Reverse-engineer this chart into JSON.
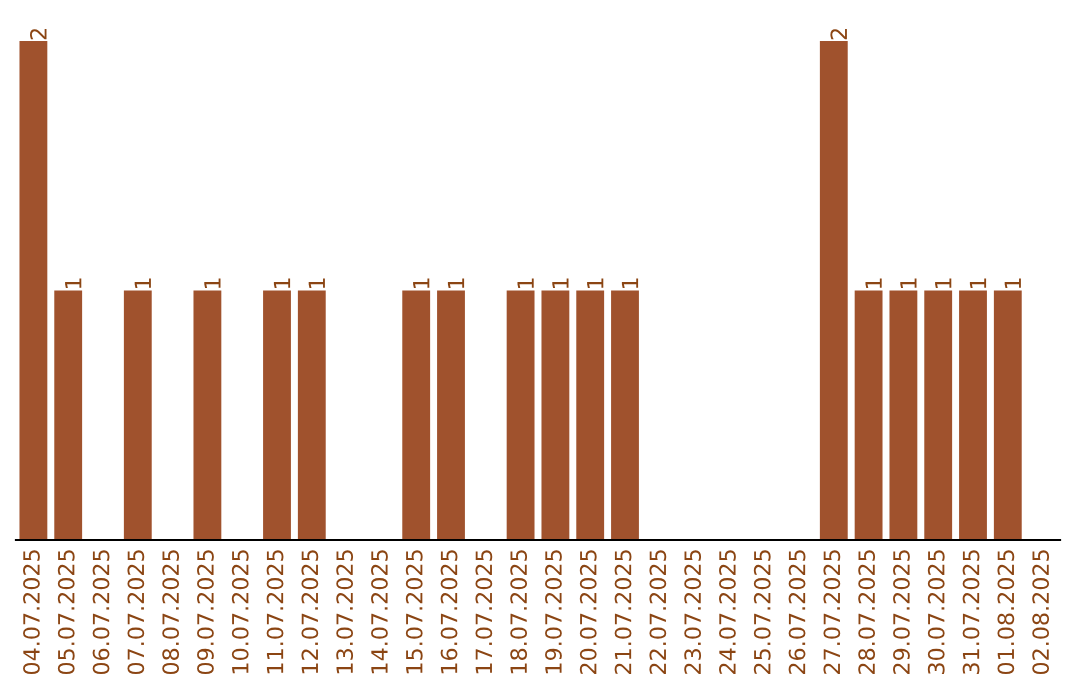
{
  "chart_data": {
    "type": "bar",
    "categories": [
      "04.07.2025",
      "05.07.2025",
      "06.07.2025",
      "07.07.2025",
      "08.07.2025",
      "09.07.2025",
      "10.07.2025",
      "11.07.2025",
      "12.07.2025",
      "13.07.2025",
      "14.07.2025",
      "15.07.2025",
      "16.07.2025",
      "17.07.2025",
      "18.07.2025",
      "19.07.2025",
      "20.07.2025",
      "21.07.2025",
      "22.07.2025",
      "23.07.2025",
      "24.07.2025",
      "25.07.2025",
      "26.07.2025",
      "27.07.2025",
      "28.07.2025",
      "29.07.2025",
      "30.07.2025",
      "31.07.2025",
      "01.08.2025",
      "02.08.2025"
    ],
    "values": [
      2,
      1,
      0,
      1,
      0,
      1,
      0,
      1,
      1,
      0,
      0,
      1,
      1,
      0,
      1,
      1,
      1,
      1,
      0,
      0,
      0,
      0,
      0,
      2,
      1,
      1,
      1,
      1,
      1,
      0
    ],
    "value_labels": [
      "2",
      "1",
      null,
      "1",
      null,
      "1",
      null,
      "1",
      "1",
      null,
      null,
      "1",
      "1",
      null,
      "1",
      "1",
      "1",
      "1",
      null,
      null,
      null,
      null,
      null,
      "2",
      "1",
      "1",
      "1",
      "1",
      "1",
      null
    ],
    "color": "#a0522d",
    "grid": false,
    "legend": false
  }
}
